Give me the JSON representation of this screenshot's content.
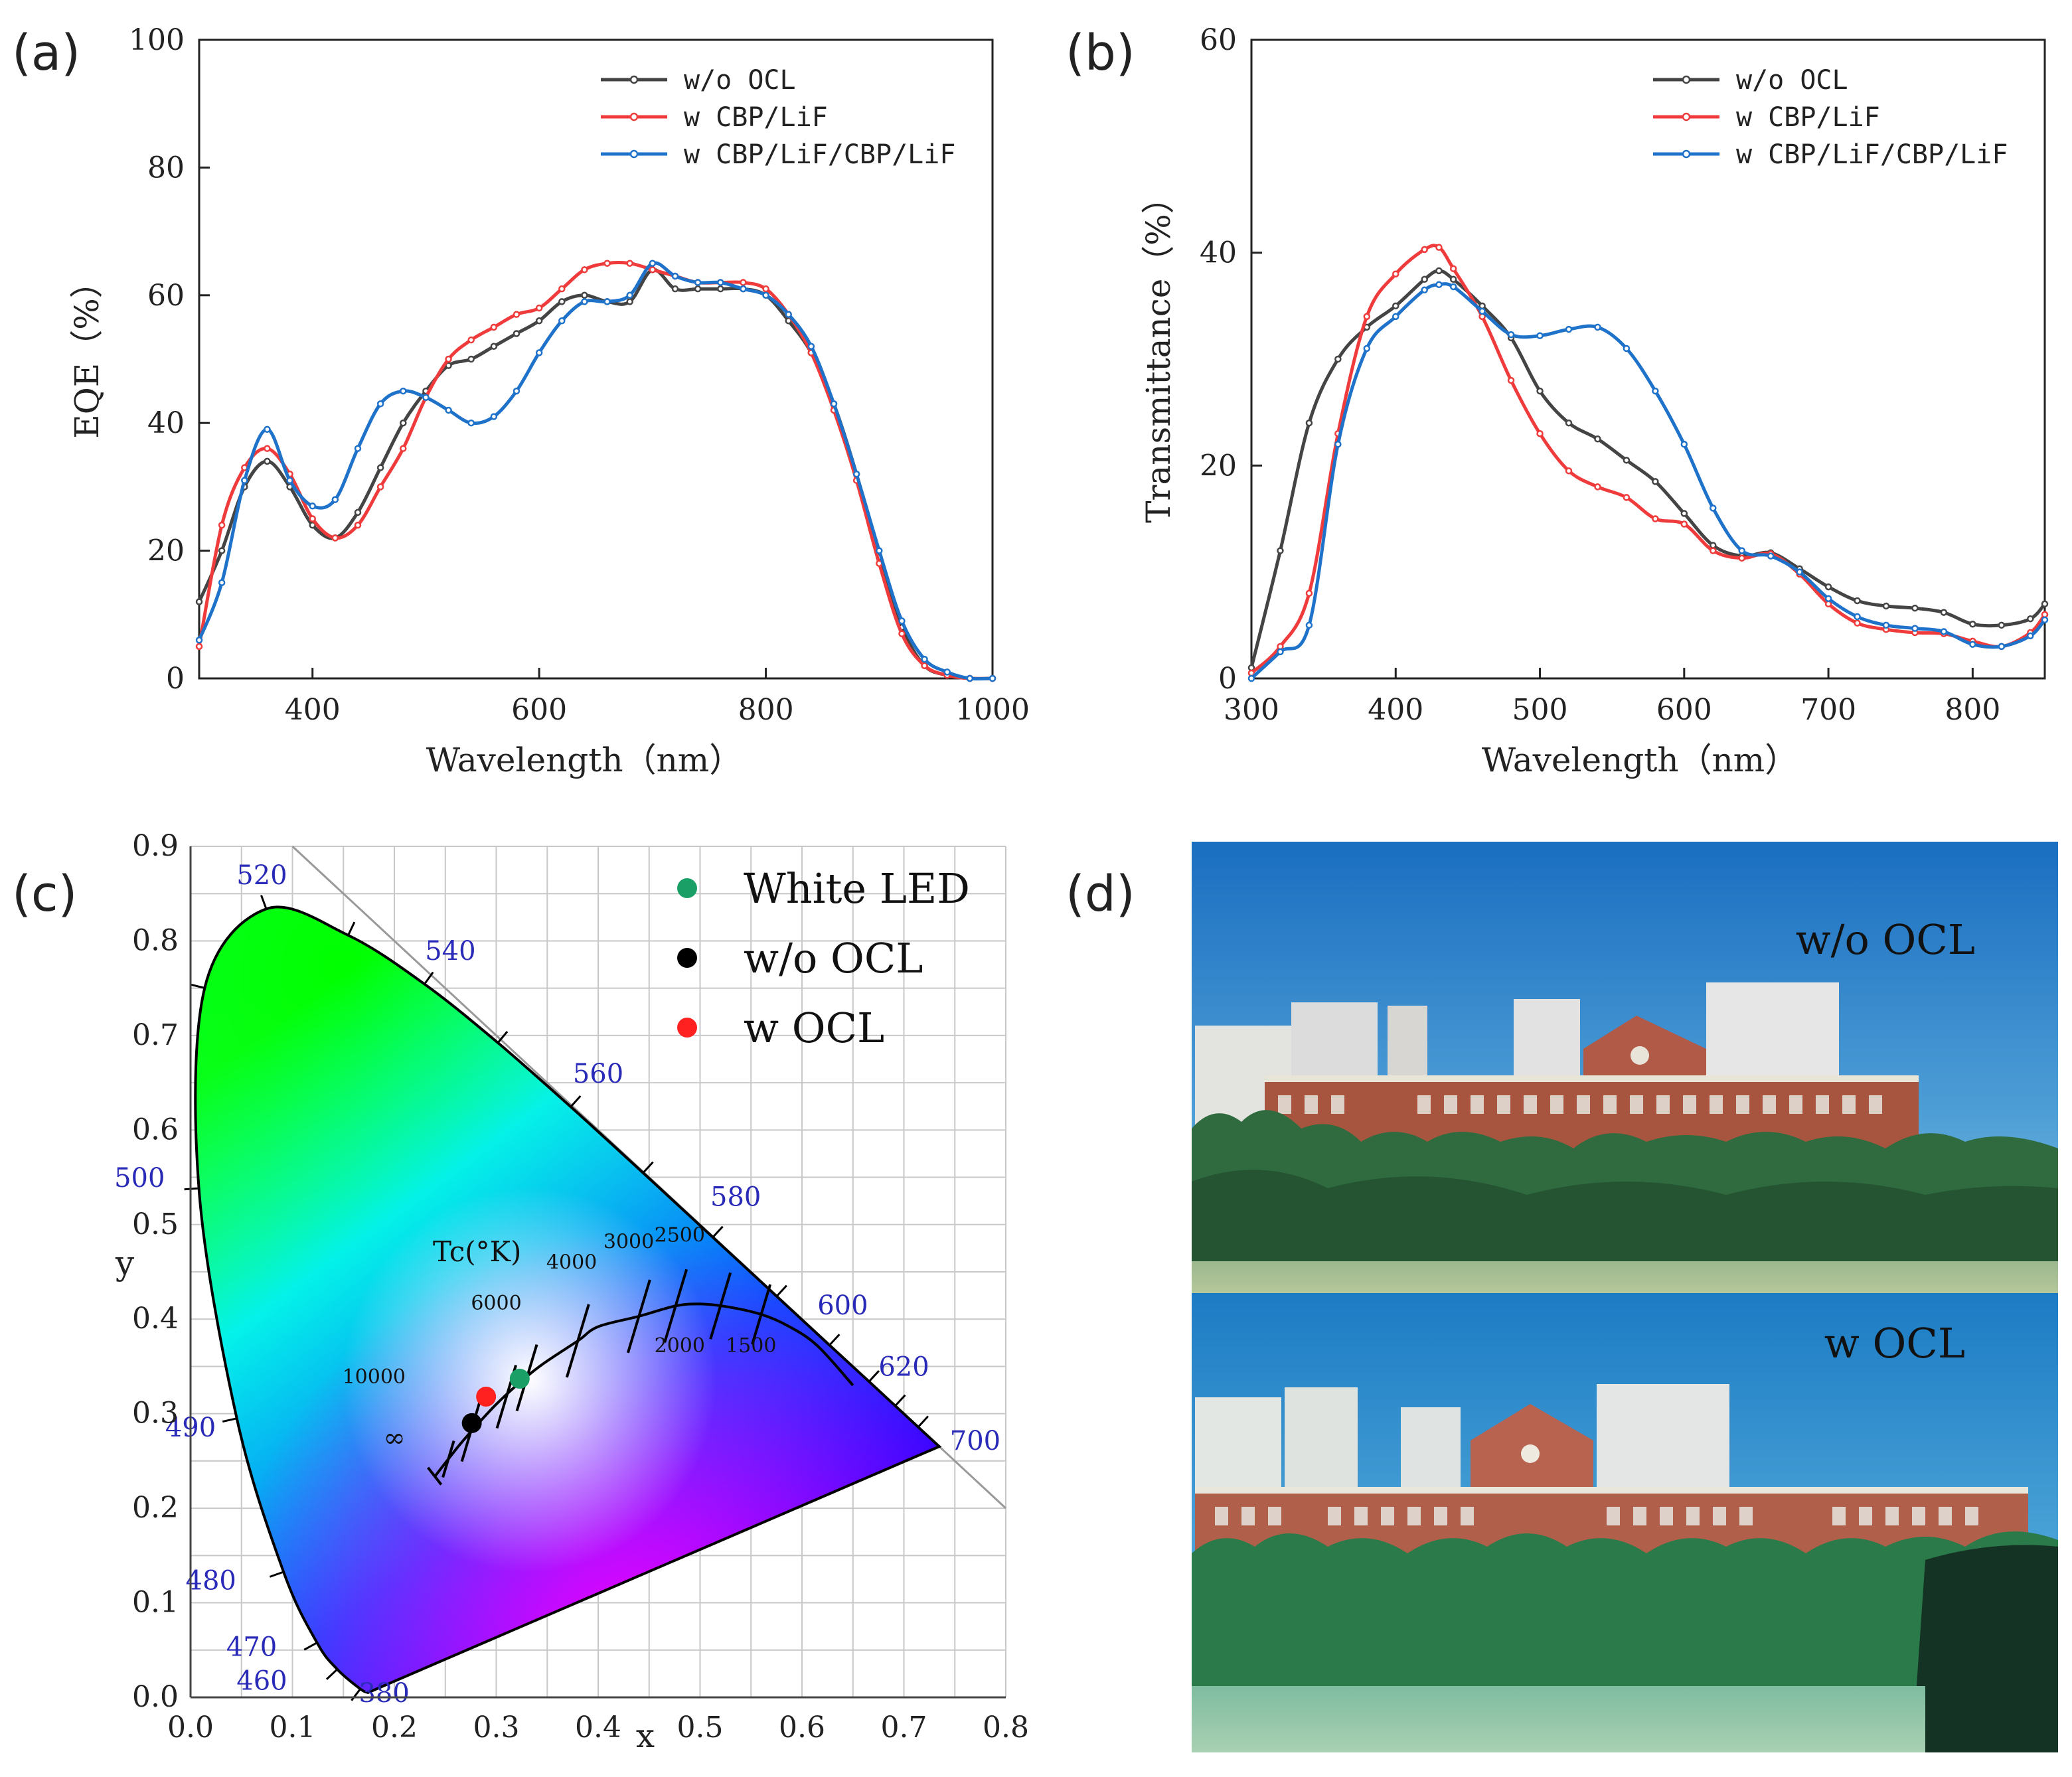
{
  "panels": {
    "a": {
      "label": "(a)"
    },
    "b": {
      "label": "(b)"
    },
    "c": {
      "label": "(c)"
    },
    "d": {
      "label": "(d)"
    }
  },
  "colors": {
    "wo_ocl": "#444444",
    "cbp_lif": "#ef3b3b",
    "cbp_lif_cbp_lif": "#1f72c9",
    "white_led": "#1aa067",
    "black_dot": "#000000",
    "red_dot": "#ff2020"
  },
  "chart_data": [
    {
      "id": "a",
      "type": "line",
      "xlabel": "Wavelength（nm）",
      "ylabel": "EQE（%）",
      "xlim": [
        300,
        1000
      ],
      "ylim": [
        0,
        100
      ],
      "xticks": [
        400,
        600,
        800,
        1000
      ],
      "yticks": [
        0,
        20,
        40,
        60,
        80,
        100
      ],
      "legend_position": "top-right",
      "series": [
        {
          "name": "w/o OCL",
          "color": "#444444",
          "x": [
            300,
            320,
            340,
            360,
            380,
            400,
            420,
            440,
            460,
            480,
            500,
            520,
            540,
            560,
            580,
            600,
            620,
            640,
            660,
            680,
            700,
            720,
            740,
            760,
            780,
            800,
            820,
            840,
            860,
            880,
            900,
            920,
            940,
            960,
            980,
            1000
          ],
          "y": [
            12,
            20,
            30,
            34,
            30,
            24,
            22,
            26,
            33,
            40,
            45,
            49,
            50,
            52,
            54,
            56,
            59,
            60,
            59,
            59,
            64,
            61,
            61,
            61,
            61,
            60,
            56,
            51,
            43,
            32,
            19,
            8,
            2,
            0.5,
            0,
            0
          ]
        },
        {
          "name": "w CBP/LiF",
          "color": "#ef3b3b",
          "x": [
            300,
            320,
            340,
            360,
            380,
            400,
            420,
            440,
            460,
            480,
            500,
            520,
            540,
            560,
            580,
            600,
            620,
            640,
            660,
            680,
            700,
            720,
            740,
            760,
            780,
            800,
            820,
            840,
            860,
            880,
            900,
            920,
            940,
            960,
            980,
            1000
          ],
          "y": [
            5,
            24,
            33,
            36,
            32,
            25,
            22,
            24,
            30,
            36,
            44,
            50,
            53,
            55,
            57,
            58,
            61,
            64,
            65,
            65,
            64,
            63,
            62,
            62,
            62,
            61,
            57,
            51,
            42,
            31,
            18,
            7,
            2,
            0.5,
            0,
            0
          ]
        },
        {
          "name": "w CBP/LiF/CBP/LiF",
          "color": "#1f72c9",
          "x": [
            300,
            320,
            340,
            360,
            380,
            400,
            420,
            440,
            460,
            480,
            500,
            520,
            540,
            560,
            580,
            600,
            620,
            640,
            660,
            680,
            700,
            720,
            740,
            760,
            780,
            800,
            820,
            840,
            860,
            880,
            900,
            920,
            940,
            960,
            980,
            1000
          ],
          "y": [
            6,
            15,
            31,
            39,
            31,
            27,
            28,
            36,
            43,
            45,
            44,
            42,
            40,
            41,
            45,
            51,
            56,
            59,
            59,
            60,
            65,
            63,
            62,
            62,
            61,
            60,
            57,
            52,
            43,
            32,
            20,
            9,
            3,
            1,
            0,
            0
          ]
        }
      ]
    },
    {
      "id": "b",
      "type": "line",
      "xlabel": "Wavelength（nm）",
      "ylabel": "Transmittance（%）",
      "xlim": [
        300,
        850
      ],
      "ylim": [
        0,
        60
      ],
      "xticks": [
        300,
        400,
        500,
        600,
        700,
        800
      ],
      "yticks": [
        0,
        20,
        40,
        60
      ],
      "legend_position": "top-right",
      "series": [
        {
          "name": "w/o OCL",
          "color": "#444444",
          "x": [
            300,
            320,
            340,
            360,
            380,
            400,
            420,
            430,
            440,
            460,
            480,
            500,
            520,
            540,
            560,
            580,
            600,
            620,
            640,
            660,
            680,
            700,
            720,
            740,
            760,
            780,
            800,
            820,
            840,
            850
          ],
          "y": [
            1,
            12,
            24,
            30,
            33,
            35,
            37.5,
            38.3,
            37.5,
            35,
            32,
            27,
            24,
            22.5,
            20.5,
            18.5,
            15.5,
            12.5,
            11.5,
            11.8,
            10.3,
            8.6,
            7.3,
            6.8,
            6.6,
            6.2,
            5.1,
            5,
            5.6,
            7
          ]
        },
        {
          "name": "w CBP/LiF",
          "color": "#ef3b3b",
          "x": [
            300,
            320,
            340,
            360,
            380,
            400,
            420,
            430,
            440,
            460,
            480,
            500,
            520,
            540,
            560,
            580,
            600,
            620,
            640,
            660,
            680,
            700,
            720,
            740,
            760,
            780,
            800,
            820,
            840,
            850
          ],
          "y": [
            0.5,
            3,
            8,
            23,
            34,
            38,
            40.3,
            40.5,
            38.5,
            34,
            28,
            23,
            19.5,
            18,
            17,
            15,
            14.5,
            12,
            11.3,
            11.7,
            9.8,
            7,
            5.2,
            4.6,
            4.3,
            4.2,
            3.5,
            3,
            4.3,
            6
          ]
        },
        {
          "name": "w CBP/LiF/CBP/LiF",
          "color": "#1f72c9",
          "x": [
            300,
            320,
            340,
            360,
            380,
            400,
            420,
            430,
            440,
            460,
            480,
            500,
            520,
            540,
            560,
            580,
            600,
            620,
            640,
            660,
            680,
            700,
            720,
            740,
            760,
            780,
            800,
            820,
            840,
            850
          ],
          "y": [
            0,
            2.5,
            5,
            22,
            31,
            34,
            36.5,
            37,
            36.8,
            34.5,
            32.3,
            32.2,
            32.8,
            33,
            31,
            27,
            22,
            16,
            12,
            11.5,
            10,
            7.5,
            5.8,
            5,
            4.7,
            4.4,
            3.2,
            3,
            4,
            5.5
          ]
        }
      ]
    },
    {
      "id": "c",
      "type": "scatter",
      "title": "",
      "xlabel": "x",
      "ylabel": "y",
      "xlim": [
        0,
        0.8
      ],
      "ylim": [
        0,
        0.9
      ],
      "xticks": [
        0.0,
        0.1,
        0.2,
        0.3,
        0.4,
        0.5,
        0.6,
        0.7,
        0.8
      ],
      "yticks": [
        0.0,
        0.1,
        0.2,
        0.3,
        0.4,
        0.5,
        0.6,
        0.7,
        0.8,
        0.9
      ],
      "legend_position": "top-right",
      "series": [
        {
          "name": "White LED",
          "color": "#1aa067",
          "x": [
            0.323
          ],
          "y": [
            0.337
          ]
        },
        {
          "name": "w/o OCL",
          "color": "#000000",
          "x": [
            0.276
          ],
          "y": [
            0.29
          ]
        },
        {
          "name": "w OCL",
          "color": "#ff2020",
          "x": [
            0.29
          ],
          "y": [
            0.318
          ]
        }
      ],
      "spectral_locus": [
        [
          0.1741,
          0.005
        ],
        [
          0.1666,
          0.0089
        ],
        [
          0.144,
          0.0297
        ],
        [
          0.1241,
          0.0578
        ],
        [
          0.0913,
          0.1327
        ],
        [
          0.0454,
          0.295
        ],
        [
          0.0082,
          0.5384
        ],
        [
          0.0139,
          0.7502
        ],
        [
          0.0743,
          0.8338
        ],
        [
          0.1547,
          0.8059
        ],
        [
          0.2296,
          0.7543
        ],
        [
          0.3016,
          0.6923
        ],
        [
          0.3731,
          0.6245
        ],
        [
          0.4441,
          0.5547
        ],
        [
          0.5125,
          0.4866
        ],
        [
          0.5752,
          0.4242
        ],
        [
          0.627,
          0.3725
        ],
        [
          0.6658,
          0.334
        ],
        [
          0.6915,
          0.3083
        ],
        [
          0.714,
          0.2859
        ],
        [
          0.7347,
          0.2653
        ]
      ],
      "planckian_locus": [
        [
          0.24,
          0.234
        ],
        [
          0.253,
          0.252
        ],
        [
          0.264,
          0.267
        ],
        [
          0.281,
          0.288
        ],
        [
          0.3,
          0.31
        ],
        [
          0.322,
          0.332
        ],
        [
          0.345,
          0.352
        ],
        [
          0.38,
          0.377
        ],
        [
          0.4,
          0.392
        ],
        [
          0.44,
          0.403
        ],
        [
          0.476,
          0.414
        ],
        [
          0.5,
          0.416
        ],
        [
          0.527,
          0.413
        ],
        [
          0.56,
          0.405
        ],
        [
          0.586,
          0.393
        ],
        [
          0.615,
          0.372
        ],
        [
          0.65,
          0.33
        ]
      ],
      "wavelength_labels": [
        {
          "text": "520",
          "x": 0.07,
          "y": 0.86
        },
        {
          "text": "540",
          "x": 0.255,
          "y": 0.78
        },
        {
          "text": "560",
          "x": 0.4,
          "y": 0.65
        },
        {
          "text": "580",
          "x": 0.535,
          "y": 0.52
        },
        {
          "text": "600",
          "x": 0.64,
          "y": 0.405
        },
        {
          "text": "620",
          "x": 0.7,
          "y": 0.34
        },
        {
          "text": "700",
          "x": 0.77,
          "y": 0.262
        },
        {
          "text": "500",
          "x": -0.05,
          "y": 0.54
        },
        {
          "text": "490",
          "x": 0.0,
          "y": 0.276
        },
        {
          "text": "480",
          "x": 0.02,
          "y": 0.114
        },
        {
          "text": "470",
          "x": 0.06,
          "y": 0.044
        },
        {
          "text": "460",
          "x": 0.07,
          "y": 0.008
        },
        {
          "text": "380",
          "x": 0.19,
          "y": -0.005
        }
      ],
      "cct_labels": [
        {
          "text": "10000",
          "x": 0.18,
          "y": 0.332
        },
        {
          "text": "6000",
          "x": 0.3,
          "y": 0.41
        },
        {
          "text": "4000",
          "x": 0.374,
          "y": 0.453
        },
        {
          "text": "3000",
          "x": 0.43,
          "y": 0.475
        },
        {
          "text": "2500",
          "x": 0.48,
          "y": 0.482
        },
        {
          "text": "2000",
          "x": 0.48,
          "y": 0.365
        },
        {
          "text": "1500",
          "x": 0.55,
          "y": 0.365
        },
        {
          "text": "∞",
          "x": 0.2,
          "y": 0.265
        }
      ],
      "annotations": {
        "tc": "Tc(°K)"
      }
    }
  ],
  "photos": {
    "top_caption": "w/o OCL",
    "bottom_caption": "w OCL"
  }
}
